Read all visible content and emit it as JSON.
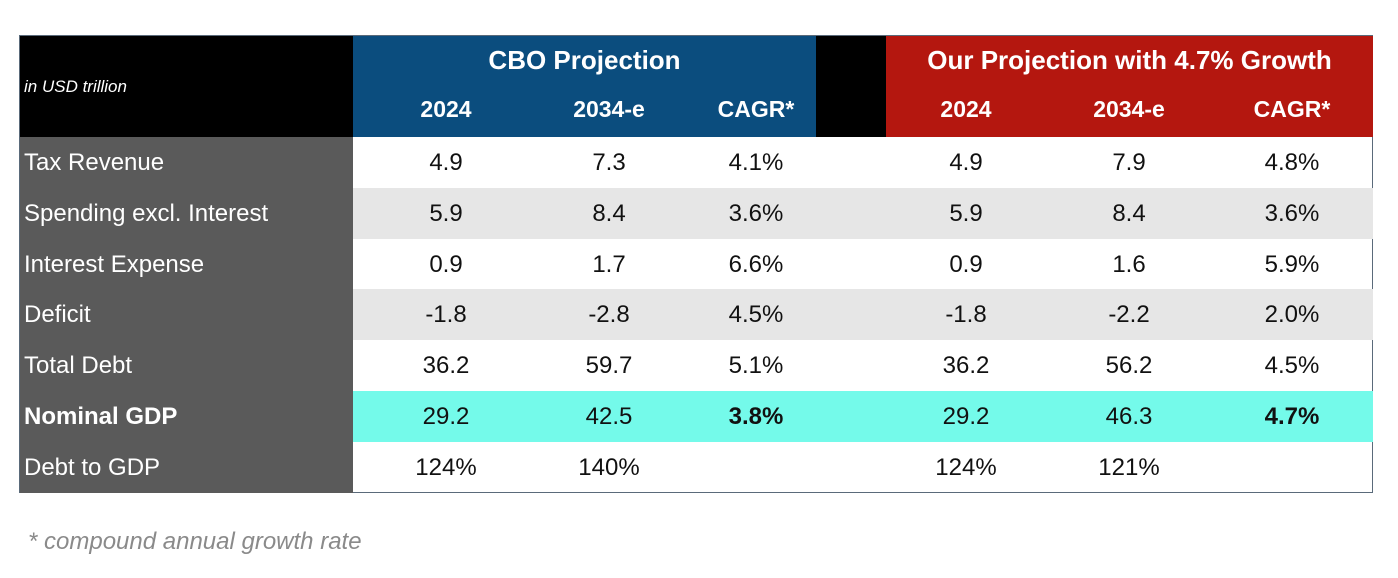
{
  "units_label": "in USD trillion",
  "groups": {
    "cbo": {
      "title": "CBO Projection",
      "color": "#0b4d7e"
    },
    "ours": {
      "title": "Our Projection with 4.7% Growth",
      "color": "#b4170f"
    }
  },
  "columns": {
    "cbo": [
      "2024",
      "2034-e",
      "CAGR*"
    ],
    "ours": [
      "2024",
      "2034-e",
      "CAGR*"
    ]
  },
  "rows": [
    {
      "label": "Tax Revenue",
      "cbo": [
        "4.9",
        "7.3",
        "4.1%"
      ],
      "ours": [
        "4.9",
        "7.9",
        "4.8%"
      ]
    },
    {
      "label": "Spending excl. Interest",
      "cbo": [
        "5.9",
        "8.4",
        "3.6%"
      ],
      "ours": [
        "5.9",
        "8.4",
        "3.6%"
      ]
    },
    {
      "label": "Interest Expense",
      "cbo": [
        "0.9",
        "1.7",
        "6.6%"
      ],
      "ours": [
        "0.9",
        "1.6",
        "5.9%"
      ]
    },
    {
      "label": "Deficit",
      "cbo": [
        "-1.8",
        "-2.8",
        "4.5%"
      ],
      "ours": [
        "-1.8",
        "-2.2",
        "2.0%"
      ]
    },
    {
      "label": "Total Debt",
      "cbo": [
        "36.2",
        "59.7",
        "5.1%"
      ],
      "ours": [
        "36.2",
        "56.2",
        "4.5%"
      ]
    },
    {
      "label": "Nominal GDP",
      "cbo": [
        "29.2",
        "42.5",
        "3.8%"
      ],
      "ours": [
        "29.2",
        "46.3",
        "4.7%"
      ]
    },
    {
      "label": "Debt to GDP",
      "cbo": [
        "124%",
        "140%",
        ""
      ],
      "ours": [
        "124%",
        "121%",
        ""
      ]
    }
  ],
  "highlight_color": "#74faea",
  "footnote": "*  compound annual growth rate"
}
